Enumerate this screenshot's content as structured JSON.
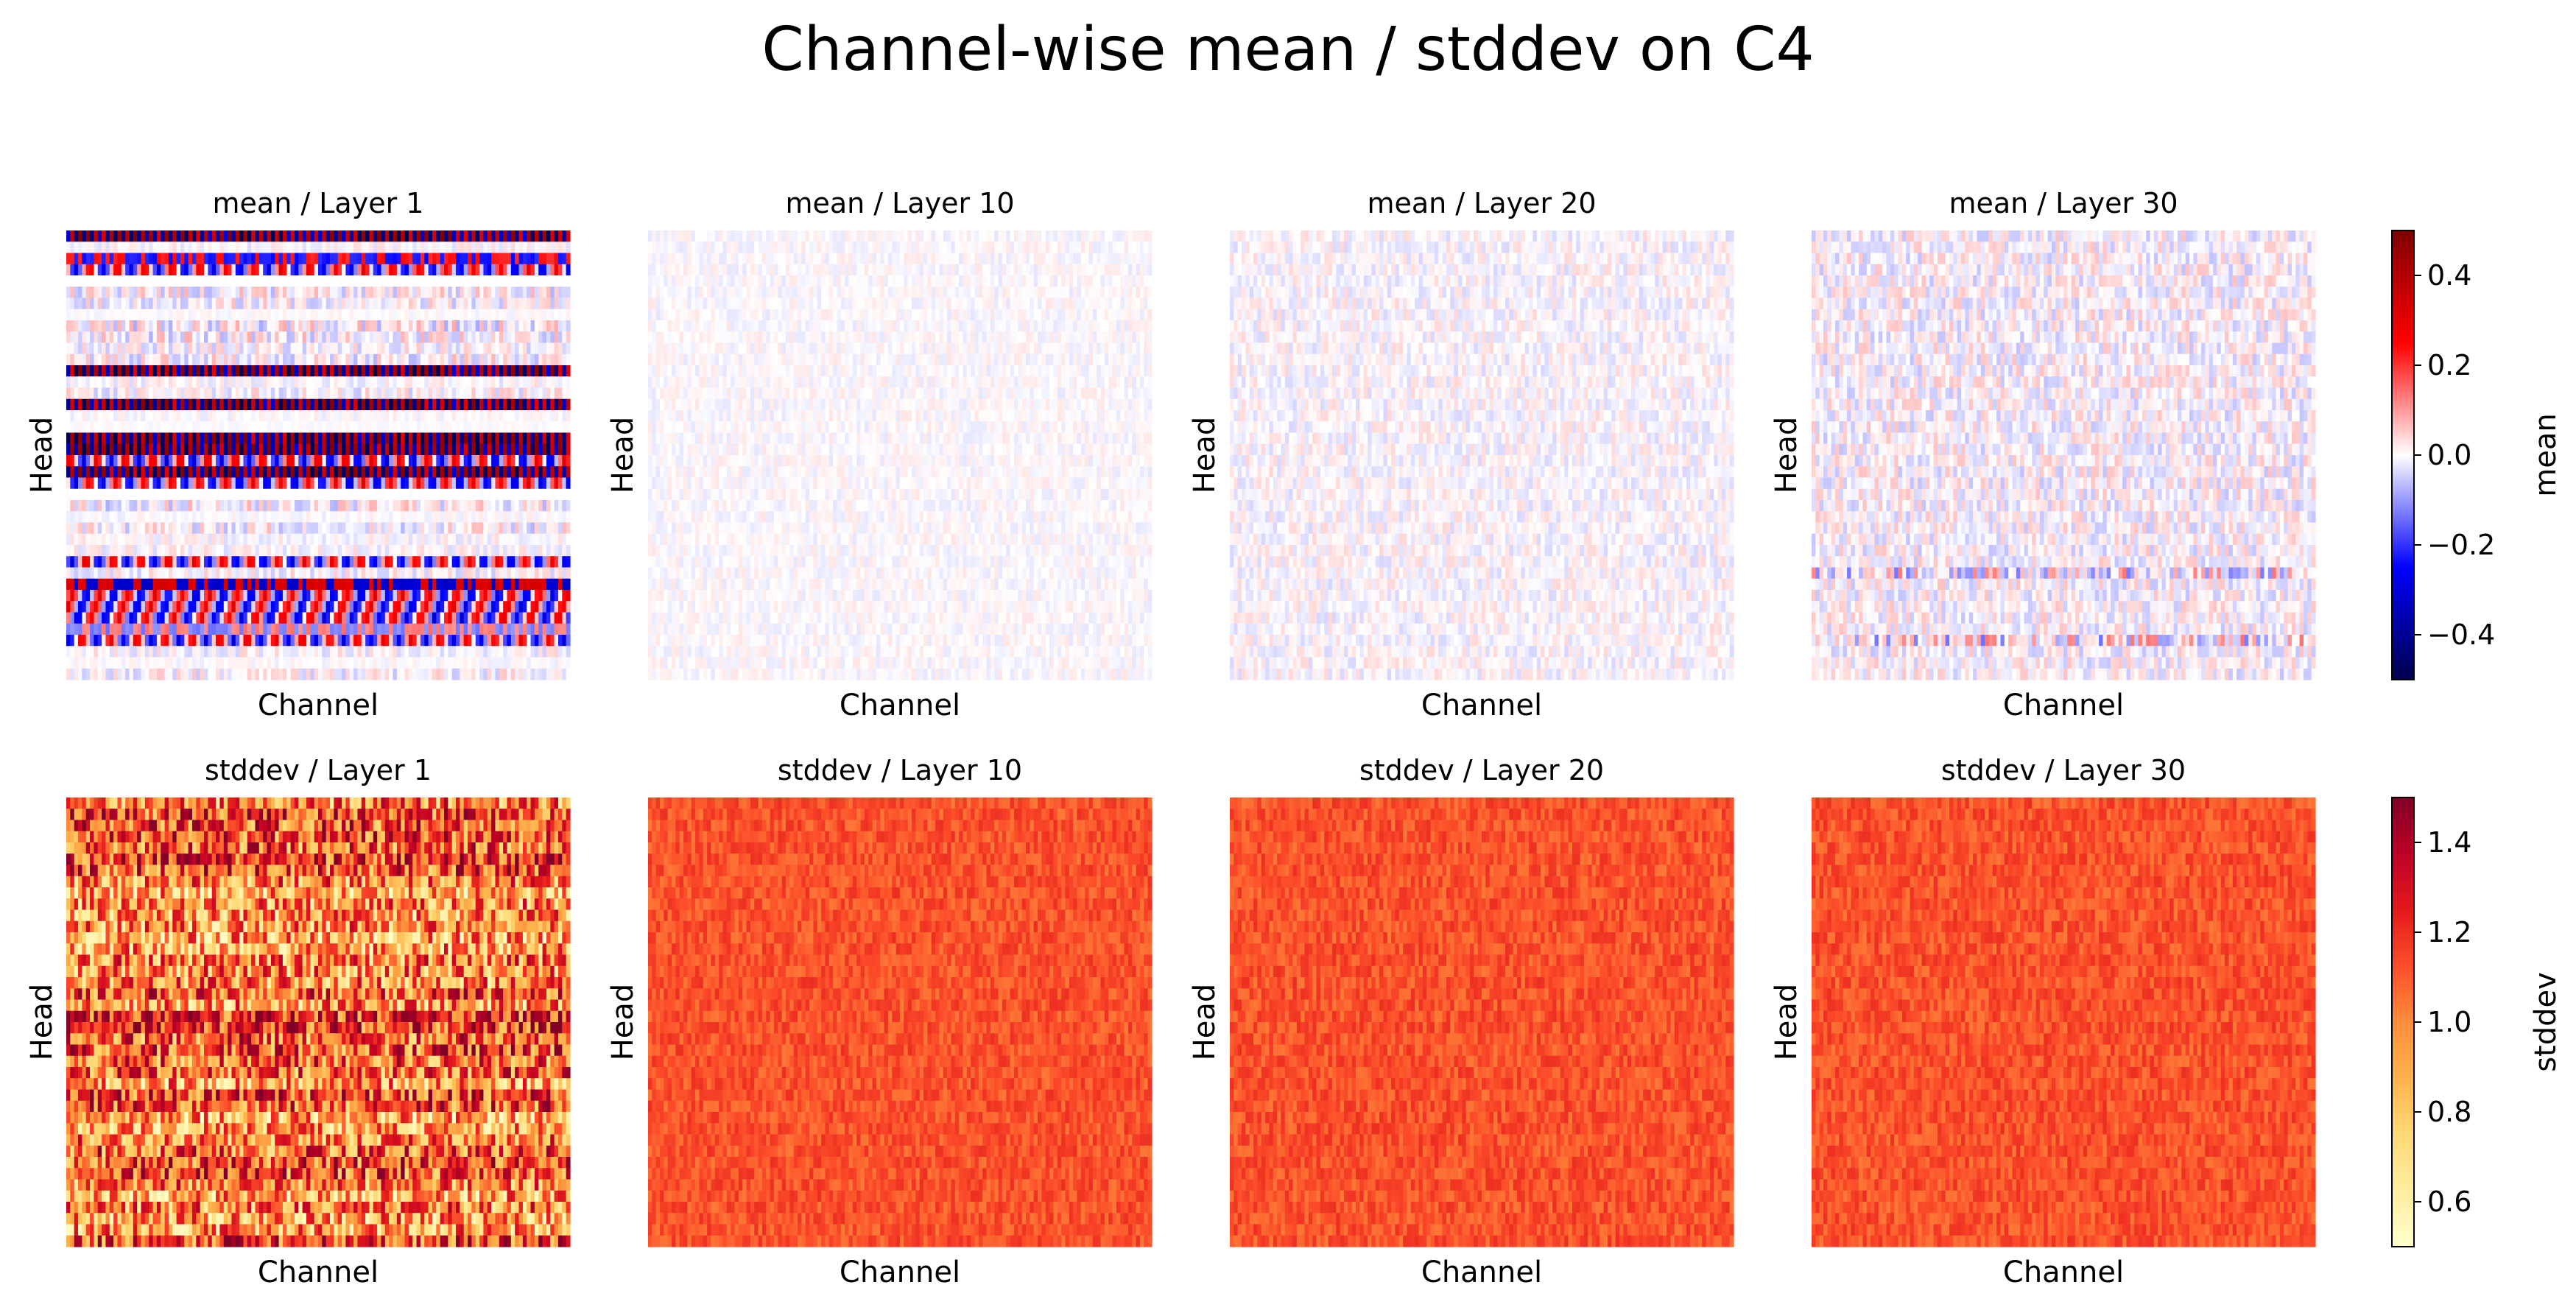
{
  "chart_data": {
    "type": "heatmap",
    "title": "Channel-wise mean / stddev on C4",
    "grid": false,
    "panels": [
      {
        "row": "mean",
        "layer": 1,
        "title": "mean / Layer 1",
        "xlabel": "Channel",
        "ylabel": "Head",
        "pattern": "mean-layer1-strong-structured-head-bands"
      },
      {
        "row": "mean",
        "layer": 10,
        "title": "mean / Layer 10",
        "xlabel": "Channel",
        "ylabel": "Head",
        "pattern": "mean-near-zero-very-faint"
      },
      {
        "row": "mean",
        "layer": 20,
        "title": "mean / Layer 20",
        "xlabel": "Channel",
        "ylabel": "Head",
        "pattern": "mean-near-zero-faint"
      },
      {
        "row": "mean",
        "layer": 30,
        "title": "mean / Layer 30",
        "xlabel": "Channel",
        "ylabel": "Head",
        "pattern": "mean-small-noise-with-some-stronger-rows"
      },
      {
        "row": "stddev",
        "layer": 1,
        "title": "stddev / Layer 1",
        "xlabel": "Channel",
        "ylabel": "Head",
        "pattern": "stddev-layer1-high-variance-0.5-to-1.5"
      },
      {
        "row": "stddev",
        "layer": 10,
        "title": "stddev / Layer 10",
        "xlabel": "Channel",
        "ylabel": "Head",
        "pattern": "stddev-around-1.05-to-1.2"
      },
      {
        "row": "stddev",
        "layer": 20,
        "title": "stddev / Layer 20",
        "xlabel": "Channel",
        "ylabel": "Head",
        "pattern": "stddev-around-1.05-to-1.2"
      },
      {
        "row": "stddev",
        "layer": 30,
        "title": "stddev / Layer 30",
        "xlabel": "Channel",
        "ylabel": "Head",
        "pattern": "stddev-around-1.05-to-1.2"
      }
    ],
    "colorbars": [
      {
        "label": "mean",
        "cmap": "seismic",
        "vmin": -0.5,
        "vmax": 0.5,
        "ticks": [
          0.4,
          0.2,
          0.0,
          -0.2,
          -0.4
        ],
        "tick_labels": [
          "0.4",
          "0.2",
          "0.0",
          "−0.2",
          "−0.4"
        ]
      },
      {
        "label": "stddev",
        "cmap": "YlOrRd",
        "vmin": 0.5,
        "vmax": 1.5,
        "ticks": [
          1.4,
          1.2,
          1.0,
          0.8,
          0.6
        ],
        "tick_labels": [
          "1.4",
          "1.2",
          "1.0",
          "0.8",
          "0.6"
        ]
      }
    ]
  }
}
